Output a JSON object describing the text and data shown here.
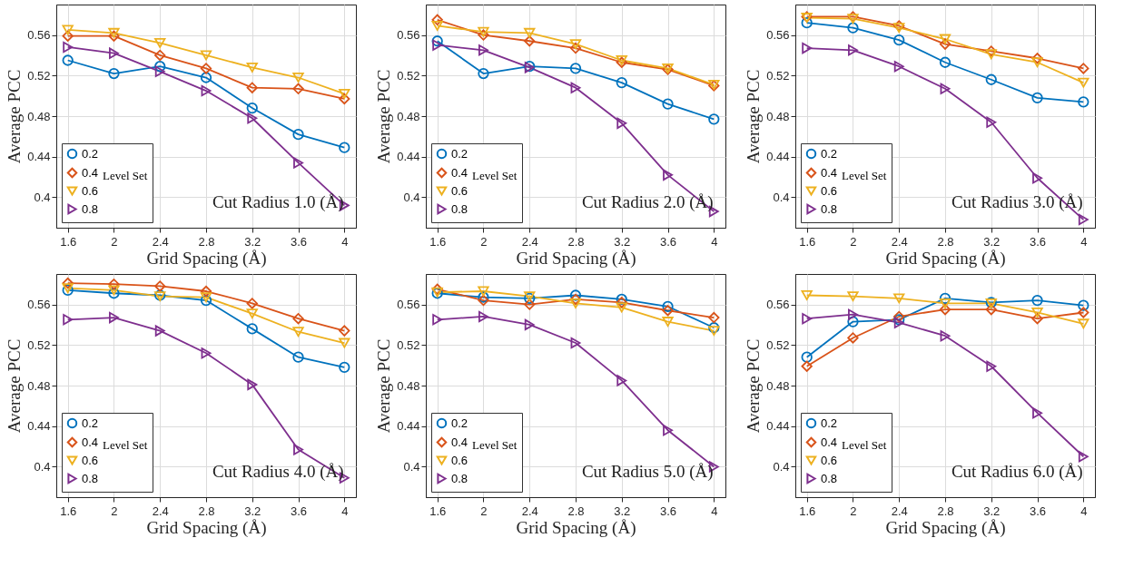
{
  "chart_data": [
    {
      "type": "line",
      "annotations": [
        "Cut Radius 1.0 (Å)"
      ],
      "xlabel": "Grid Spacing (Å)",
      "ylabel": "Average PCC",
      "x": [
        1.6,
        2,
        2.4,
        2.8,
        3.2,
        3.6,
        4
      ],
      "xlim": [
        1.5,
        4.1
      ],
      "xticks": [
        1.6,
        2,
        2.4,
        2.8,
        3.2,
        3.6,
        4
      ],
      "ylim": [
        0.37,
        0.59
      ],
      "yticks": [
        0.4,
        0.44,
        0.48,
        0.52,
        0.56
      ],
      "grid": true,
      "legend": "bottom left",
      "legend_title": "Level Set",
      "series": [
        {
          "name": "0.2",
          "color": "#0072bd",
          "marker": "circle",
          "values": [
            0.535,
            0.522,
            0.529,
            0.518,
            0.488,
            0.462,
            0.449
          ]
        },
        {
          "name": "0.4",
          "color": "#d95319",
          "marker": "diamond",
          "values": [
            0.559,
            0.559,
            0.54,
            0.527,
            0.508,
            0.507,
            0.497
          ]
        },
        {
          "name": "0.6",
          "color": "#edb120",
          "marker": "triangle-down",
          "values": [
            0.565,
            0.562,
            0.552,
            0.54,
            0.528,
            0.518,
            0.502
          ]
        },
        {
          "name": "0.8",
          "color": "#7e2f8e",
          "marker": "triangle-right",
          "values": [
            0.548,
            0.542,
            0.524,
            0.505,
            0.478,
            0.434,
            0.392
          ]
        }
      ]
    },
    {
      "type": "line",
      "annotations": [
        "Cut Radius 2.0 (Å)"
      ],
      "xlabel": "Grid Spacing (Å)",
      "ylabel": "Average PCC",
      "x": [
        1.6,
        2,
        2.4,
        2.8,
        3.2,
        3.6,
        4
      ],
      "xlim": [
        1.5,
        4.1
      ],
      "xticks": [
        1.6,
        2,
        2.4,
        2.8,
        3.2,
        3.6,
        4
      ],
      "ylim": [
        0.37,
        0.59
      ],
      "yticks": [
        0.4,
        0.44,
        0.48,
        0.52,
        0.56
      ],
      "grid": true,
      "legend": "bottom left",
      "legend_title": "Level Set",
      "series": [
        {
          "name": "0.2",
          "color": "#0072bd",
          "marker": "circle",
          "values": [
            0.554,
            0.522,
            0.529,
            0.527,
            0.513,
            0.492,
            0.477
          ]
        },
        {
          "name": "0.4",
          "color": "#d95319",
          "marker": "diamond",
          "values": [
            0.575,
            0.56,
            0.554,
            0.547,
            0.533,
            0.526,
            0.51
          ]
        },
        {
          "name": "0.6",
          "color": "#edb120",
          "marker": "triangle-down",
          "values": [
            0.569,
            0.563,
            0.562,
            0.551,
            0.535,
            0.527,
            0.511
          ]
        },
        {
          "name": "0.8",
          "color": "#7e2f8e",
          "marker": "triangle-right",
          "values": [
            0.55,
            0.545,
            0.528,
            0.508,
            0.473,
            0.422,
            0.386
          ]
        }
      ]
    },
    {
      "type": "line",
      "annotations": [
        "Cut Radius 3.0 (Å)"
      ],
      "xlabel": "Grid Spacing (Å)",
      "ylabel": "Average PCC",
      "x": [
        1.6,
        2,
        2.4,
        2.8,
        3.2,
        3.6,
        4
      ],
      "xlim": [
        1.5,
        4.1
      ],
      "xticks": [
        1.6,
        2,
        2.4,
        2.8,
        3.2,
        3.6,
        4
      ],
      "ylim": [
        0.37,
        0.59
      ],
      "yticks": [
        0.4,
        0.44,
        0.48,
        0.52,
        0.56
      ],
      "grid": true,
      "legend": "bottom left",
      "legend_title": "Level Set",
      "series": [
        {
          "name": "0.2",
          "color": "#0072bd",
          "marker": "circle",
          "values": [
            0.572,
            0.567,
            0.555,
            0.533,
            0.516,
            0.498,
            0.494
          ]
        },
        {
          "name": "0.4",
          "color": "#d95319",
          "marker": "diamond",
          "values": [
            0.578,
            0.578,
            0.569,
            0.551,
            0.544,
            0.537,
            0.527
          ]
        },
        {
          "name": "0.6",
          "color": "#edb120",
          "marker": "triangle-down",
          "values": [
            0.577,
            0.576,
            0.567,
            0.556,
            0.541,
            0.533,
            0.513
          ]
        },
        {
          "name": "0.8",
          "color": "#7e2f8e",
          "marker": "triangle-right",
          "values": [
            0.547,
            0.545,
            0.529,
            0.507,
            0.474,
            0.419,
            0.378
          ]
        }
      ]
    },
    {
      "type": "line",
      "annotations": [
        "Cut Radius 4.0 (Å)"
      ],
      "xlabel": "Grid Spacing (Å)",
      "ylabel": "Average PCC",
      "x": [
        1.6,
        2,
        2.4,
        2.8,
        3.2,
        3.6,
        4
      ],
      "xlim": [
        1.5,
        4.1
      ],
      "xticks": [
        1.6,
        2,
        2.4,
        2.8,
        3.2,
        3.6,
        4
      ],
      "ylim": [
        0.37,
        0.59
      ],
      "yticks": [
        0.4,
        0.44,
        0.48,
        0.52,
        0.56
      ],
      "grid": true,
      "legend": "bottom left",
      "legend_title": "Level Set",
      "series": [
        {
          "name": "0.2",
          "color": "#0072bd",
          "marker": "circle",
          "values": [
            0.574,
            0.571,
            0.569,
            0.564,
            0.536,
            0.508,
            0.498
          ]
        },
        {
          "name": "0.4",
          "color": "#d95319",
          "marker": "diamond",
          "values": [
            0.581,
            0.58,
            0.578,
            0.573,
            0.561,
            0.546,
            0.534
          ]
        },
        {
          "name": "0.6",
          "color": "#edb120",
          "marker": "triangle-down",
          "values": [
            0.576,
            0.574,
            0.568,
            0.567,
            0.551,
            0.533,
            0.522
          ]
        },
        {
          "name": "0.8",
          "color": "#7e2f8e",
          "marker": "triangle-right",
          "values": [
            0.545,
            0.547,
            0.534,
            0.512,
            0.481,
            0.417,
            0.389
          ]
        }
      ]
    },
    {
      "type": "line",
      "annotations": [
        "Cut Radius 5.0 (Å)"
      ],
      "xlabel": "Grid Spacing (Å)",
      "ylabel": "Average PCC",
      "x": [
        1.6,
        2,
        2.4,
        2.8,
        3.2,
        3.6,
        4
      ],
      "xlim": [
        1.5,
        4.1
      ],
      "xticks": [
        1.6,
        2,
        2.4,
        2.8,
        3.2,
        3.6,
        4
      ],
      "ylim": [
        0.37,
        0.59
      ],
      "yticks": [
        0.4,
        0.44,
        0.48,
        0.52,
        0.56
      ],
      "grid": true,
      "legend": "bottom left",
      "legend_title": "Level Set",
      "series": [
        {
          "name": "0.2",
          "color": "#0072bd",
          "marker": "circle",
          "values": [
            0.571,
            0.567,
            0.566,
            0.569,
            0.565,
            0.558,
            0.537
          ]
        },
        {
          "name": "0.4",
          "color": "#d95319",
          "marker": "diamond",
          "values": [
            0.575,
            0.564,
            0.56,
            0.565,
            0.562,
            0.554,
            0.547
          ]
        },
        {
          "name": "0.6",
          "color": "#edb120",
          "marker": "triangle-down",
          "values": [
            0.572,
            0.573,
            0.568,
            0.561,
            0.557,
            0.543,
            0.534
          ]
        },
        {
          "name": "0.8",
          "color": "#7e2f8e",
          "marker": "triangle-right",
          "values": [
            0.545,
            0.548,
            0.54,
            0.522,
            0.485,
            0.436,
            0.4
          ]
        }
      ]
    },
    {
      "type": "line",
      "annotations": [
        "Cut Radius 6.0 (Å)"
      ],
      "xlabel": "Grid Spacing (Å)",
      "ylabel": "Average PCC",
      "x": [
        1.6,
        2,
        2.4,
        2.8,
        3.2,
        3.6,
        4
      ],
      "xlim": [
        1.5,
        4.1
      ],
      "xticks": [
        1.6,
        2,
        2.4,
        2.8,
        3.2,
        3.6,
        4
      ],
      "ylim": [
        0.37,
        0.59
      ],
      "yticks": [
        0.4,
        0.44,
        0.48,
        0.52,
        0.56
      ],
      "grid": true,
      "legend": "bottom left",
      "legend_title": "Level Set",
      "series": [
        {
          "name": "0.2",
          "color": "#0072bd",
          "marker": "circle",
          "values": [
            0.508,
            0.543,
            0.545,
            0.566,
            0.562,
            0.564,
            0.559
          ]
        },
        {
          "name": "0.4",
          "color": "#d95319",
          "marker": "diamond",
          "values": [
            0.499,
            0.527,
            0.548,
            0.555,
            0.555,
            0.546,
            0.552
          ]
        },
        {
          "name": "0.6",
          "color": "#edb120",
          "marker": "triangle-down",
          "values": [
            0.569,
            0.568,
            0.566,
            0.561,
            0.561,
            0.552,
            0.541
          ]
        },
        {
          "name": "0.8",
          "color": "#7e2f8e",
          "marker": "triangle-right",
          "values": [
            0.546,
            0.55,
            0.542,
            0.529,
            0.499,
            0.453,
            0.41
          ]
        }
      ]
    }
  ]
}
